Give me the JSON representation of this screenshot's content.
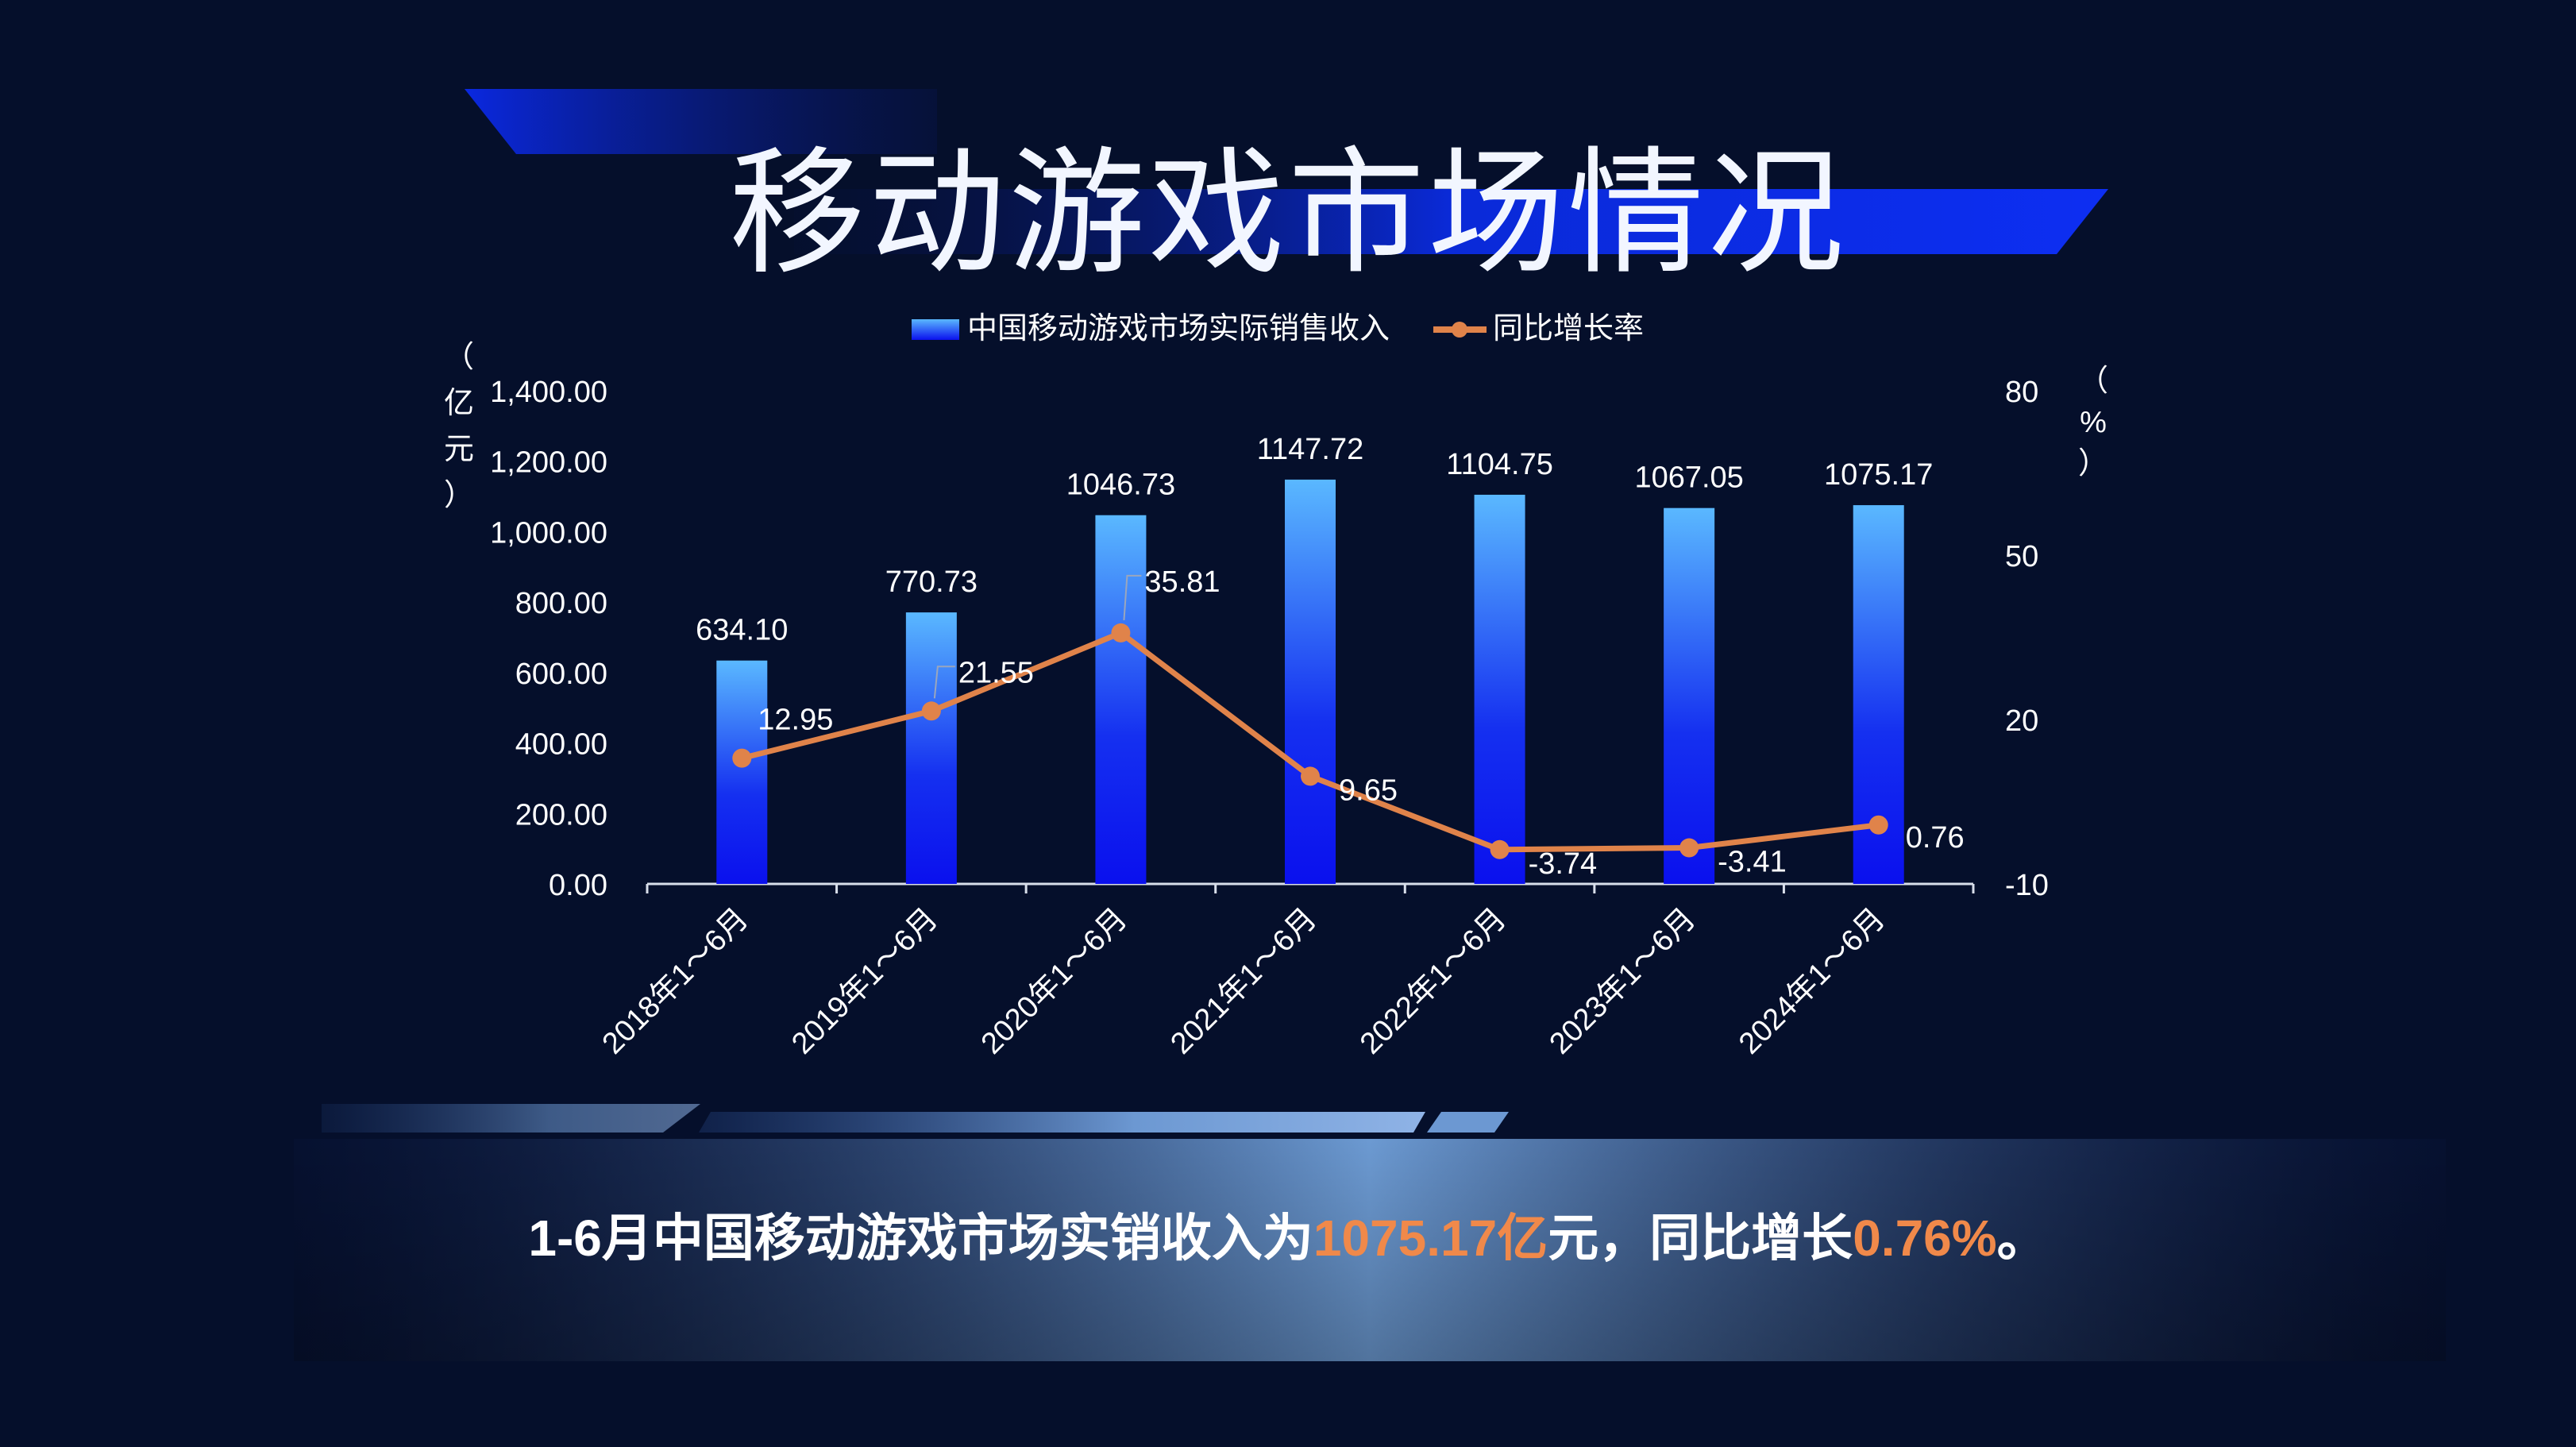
{
  "page": {
    "title": "移动游戏市场情况",
    "summary_parts": [
      {
        "text": "1-6月中国移动游戏市场实销收入为",
        "highlight": false
      },
      {
        "text": "1075.17亿",
        "highlight": true
      },
      {
        "text": "元，同比增长",
        "highlight": false
      },
      {
        "text": "0.76%",
        "highlight": true
      },
      {
        "text": "。",
        "highlight": false
      }
    ]
  },
  "colors": {
    "background": "#050f2b",
    "bar_top": "#5ab8ff",
    "bar_bottom": "#0a14f0",
    "line": "#e0834a",
    "axis_text": "#ffffff",
    "highlight": "#f0894a"
  },
  "chart_data": {
    "type": "bar",
    "categories": [
      "2018年1～6月",
      "2019年1～6月",
      "2020年1～6月",
      "2021年1～6月",
      "2022年1～6月",
      "2023年1～6月",
      "2024年1～6月"
    ],
    "series": [
      {
        "name": "中国移动游戏市场实际销售收入",
        "type": "bar",
        "axis": "left",
        "values": [
          634.1,
          770.73,
          1046.73,
          1147.72,
          1104.75,
          1067.05,
          1075.17
        ],
        "labels": [
          "634.10",
          "770.73",
          "1046.73",
          "1147.72",
          "1104.75",
          "1067.05",
          "1075.17"
        ]
      },
      {
        "name": "同比增长率",
        "type": "line",
        "axis": "right",
        "values": [
          12.95,
          21.55,
          35.81,
          9.65,
          -3.74,
          -3.41,
          0.76
        ],
        "labels": [
          "12.95",
          "21.55",
          "35.81",
          "9.65",
          "-3.74",
          "-3.41",
          "0.76"
        ]
      }
    ],
    "y_left": {
      "label": "（亿元）",
      "ylim": [
        0,
        1400
      ],
      "ticks": [
        "0.00",
        "200.00",
        "400.00",
        "600.00",
        "800.00",
        "1,000.00",
        "1,200.00",
        "1,400.00"
      ],
      "tick_values": [
        0,
        200,
        400,
        600,
        800,
        1000,
        1200,
        1400
      ]
    },
    "y_right": {
      "label": "（%）",
      "ylim": [
        -10,
        80
      ],
      "ticks": [
        "-10",
        "20",
        "50",
        "80"
      ],
      "tick_values": [
        -10,
        20,
        50,
        80
      ]
    },
    "legend_position": "top-center",
    "grid": false
  }
}
